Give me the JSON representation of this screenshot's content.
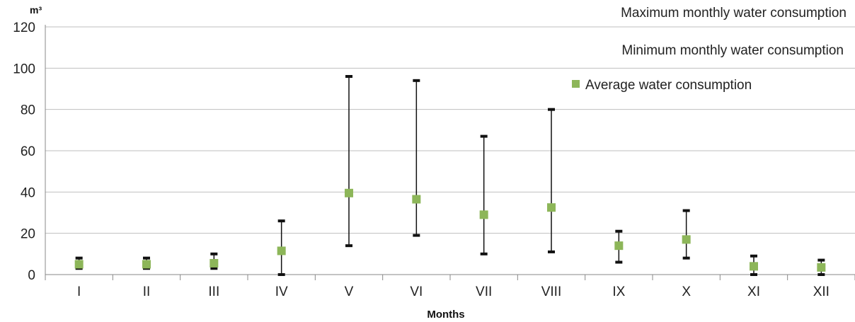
{
  "chart_data": {
    "type": "scatter",
    "unit_label": "m³",
    "xlabel": "Months",
    "ylabel": "",
    "ylim": [
      0,
      120
    ],
    "yticks": [
      0,
      20,
      40,
      60,
      80,
      100,
      120
    ],
    "categories": [
      "I",
      "II",
      "III",
      "IV",
      "V",
      "VI",
      "VII",
      "VIII",
      "IX",
      "X",
      "XI",
      "XII"
    ],
    "series": [
      {
        "name": "Maximum monthly water consumption",
        "values": [
          8,
          8,
          10,
          26,
          96,
          94,
          67,
          80,
          21,
          31,
          9,
          7
        ]
      },
      {
        "name": "Minimum monthly water consumption",
        "values": [
          3,
          3,
          3,
          0,
          14,
          19,
          10,
          11,
          6,
          8,
          0,
          0
        ]
      },
      {
        "name": "Average water consumption",
        "values": [
          5,
          5,
          5.5,
          11.5,
          39.5,
          36.5,
          29,
          32.5,
          14,
          17,
          4,
          3.5
        ]
      }
    ],
    "grid": true,
    "legend_position": "top-right",
    "colors": {
      "average_marker": "#8DB659",
      "error_bar": "#111111",
      "grid": "#BFBFBF"
    }
  }
}
